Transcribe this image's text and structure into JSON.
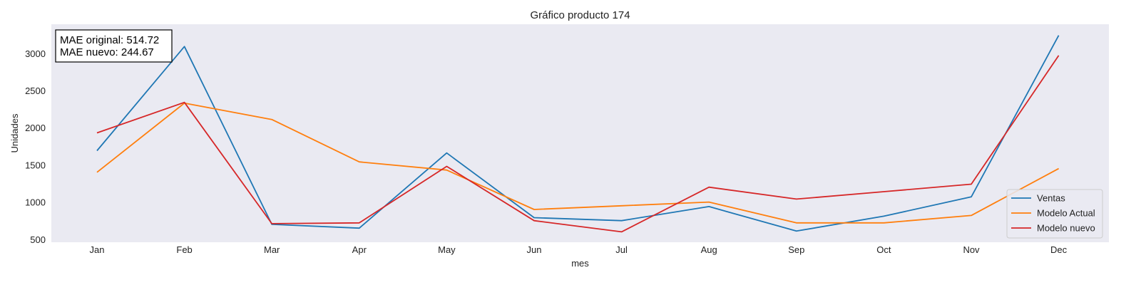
{
  "chart_data": {
    "type": "line",
    "title": "Gráfico producto 174",
    "xlabel": "mes",
    "ylabel": "Unidades",
    "categories": [
      "Jan",
      "Feb",
      "Mar",
      "Apr",
      "May",
      "Jun",
      "Jul",
      "Aug",
      "Sep",
      "Oct",
      "Nov",
      "Dec"
    ],
    "ylim": [
      470,
      3400
    ],
    "yticks": [
      500,
      1000,
      1500,
      2000,
      2500,
      3000
    ],
    "grid": false,
    "legend_position": "lower-right",
    "background_color": "#eaeaf2",
    "series": [
      {
        "name": "Ventas",
        "color": "#1f77b4",
        "values": [
          1700,
          3100,
          710,
          660,
          1670,
          800,
          760,
          950,
          620,
          820,
          1080,
          3250
        ]
      },
      {
        "name": "Modelo Actual",
        "color": "#ff7f0e",
        "values": [
          1410,
          2340,
          2120,
          1550,
          1440,
          910,
          960,
          1010,
          730,
          730,
          830,
          1460
        ]
      },
      {
        "name": "Modelo nuevo",
        "color": "#d62728",
        "values": [
          1940,
          2350,
          720,
          730,
          1490,
          760,
          610,
          1210,
          1050,
          1150,
          1250,
          2980
        ]
      }
    ],
    "annotation": [
      "MAE original: 514.72",
      "MAE nuevo: 244.67"
    ]
  }
}
